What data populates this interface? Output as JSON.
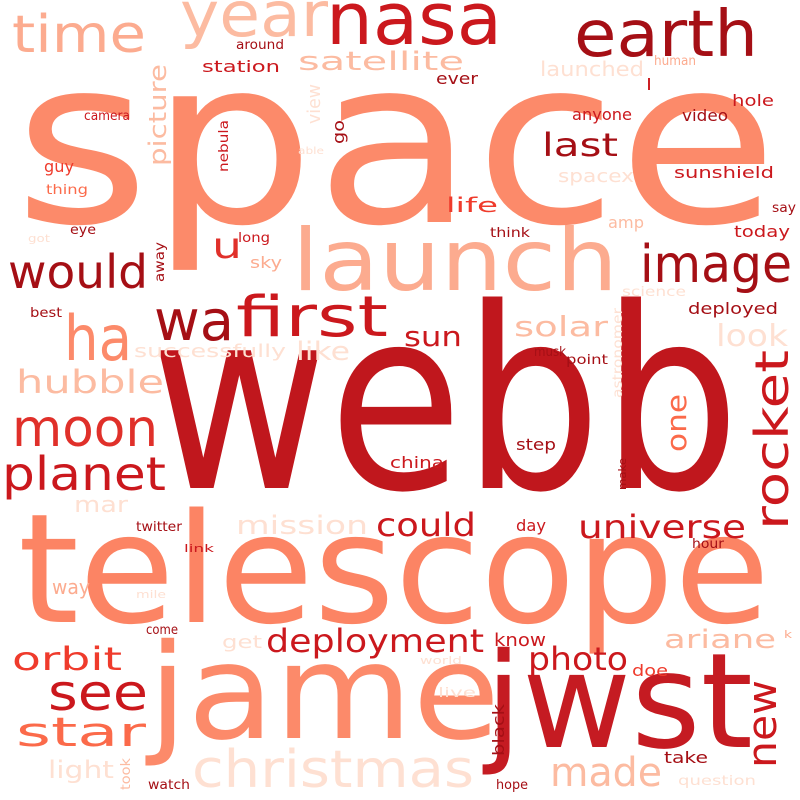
{
  "palette": {
    "background": "#ffffff",
    "dark_red": "#a50f15",
    "red": "#cb181d",
    "red_orange": "#ef3b2c",
    "salmon": "#fb6a4a",
    "light_salmon": "#fc9272",
    "pale_salmon": "#fcbba1",
    "blush": "#fee0d2"
  },
  "words": {
    "space": "space",
    "webb": "webb",
    "telescope": "telescope",
    "jame": "jame",
    "jwst": "jwst",
    "nasa": "nasa",
    "launch": "launch",
    "earth": "earth",
    "year": "year",
    "time": "time",
    "image": "image",
    "would": "would",
    "wa": "wa",
    "first": "first",
    "ha": "ha",
    "moon": "moon",
    "planet": "planet",
    "hubble": "hubble",
    "rocket": "rocket",
    "universe": "universe",
    "deployment": "deployment",
    "christmas": "christmas",
    "see": "see",
    "star": "star",
    "orbit": "orbit",
    "new": "new",
    "photo": "photo",
    "made": "made",
    "ariane": "ariane",
    "could": "could",
    "mission": "mission",
    "satellite": "satellite",
    "picture": "picture",
    "last": "last",
    "u": "u",
    "solar": "solar",
    "sun": "sun",
    "like": "like",
    "one": "one",
    "look": "look",
    "light": "light",
    "launched": "launched",
    "life": "life",
    "successfully": "successfully",
    "mar": "mar",
    "way": "way",
    "view": "view",
    "go": "go",
    "station": "station",
    "around": "around",
    "ever": "ever",
    "human": "human",
    "hole": "hole",
    "l": "l",
    "camera": "camera",
    "anyone": "anyone",
    "video": "video",
    "nebula": "nebula",
    "able": "able",
    "guy": "guy",
    "spacex": "spacex",
    "sunshield": "sunshield",
    "thing": "thing",
    "eye": "eye",
    "got": "got",
    "long": "long",
    "away": "away",
    "think": "think",
    "amp": "amp",
    "say": "say",
    "sky": "sky",
    "today": "today",
    "science": "science",
    "best": "best",
    "deployed": "deployed",
    "astronomer": "astronomer",
    "musk": "musk",
    "point": "point",
    "step": "step",
    "china": "china",
    "make": "make",
    "day": "day",
    "twitter": "twitter",
    "link": "link",
    "hour": "hour",
    "mile": "mile",
    "get": "get",
    "know": "know",
    "come": "come",
    "world": "world",
    "doe": "doe",
    "k": "k",
    "live": "live",
    "black": "black",
    "took": "took",
    "watch": "watch",
    "hope": "hope",
    "question": "question",
    "take": "take"
  }
}
